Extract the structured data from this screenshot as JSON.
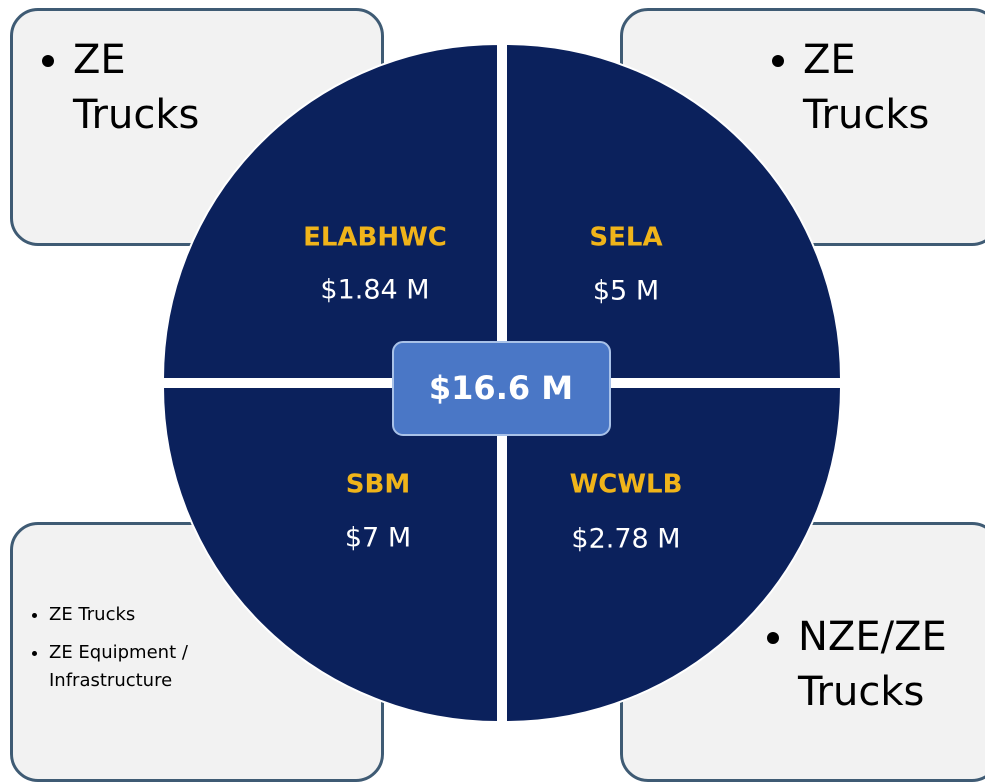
{
  "boxes": [
    {
      "items": [
        "ZE Trucks"
      ]
    },
    {
      "items": [
        "ZE Trucks"
      ]
    },
    {
      "items": [
        "ZE Trucks",
        "ZE Equipment / Infrastructure"
      ]
    },
    {
      "items": [
        "NZE/ZE Trucks"
      ]
    }
  ],
  "quadrants": [
    {
      "name": "ELABHWC",
      "amount": "$1.84 M"
    },
    {
      "name": "SELA",
      "amount": "$5 M"
    },
    {
      "name": "SBM",
      "amount": "$7 M"
    },
    {
      "name": "WCWLB",
      "amount": "$2.78 M"
    }
  ],
  "total": "$16.6 M"
}
